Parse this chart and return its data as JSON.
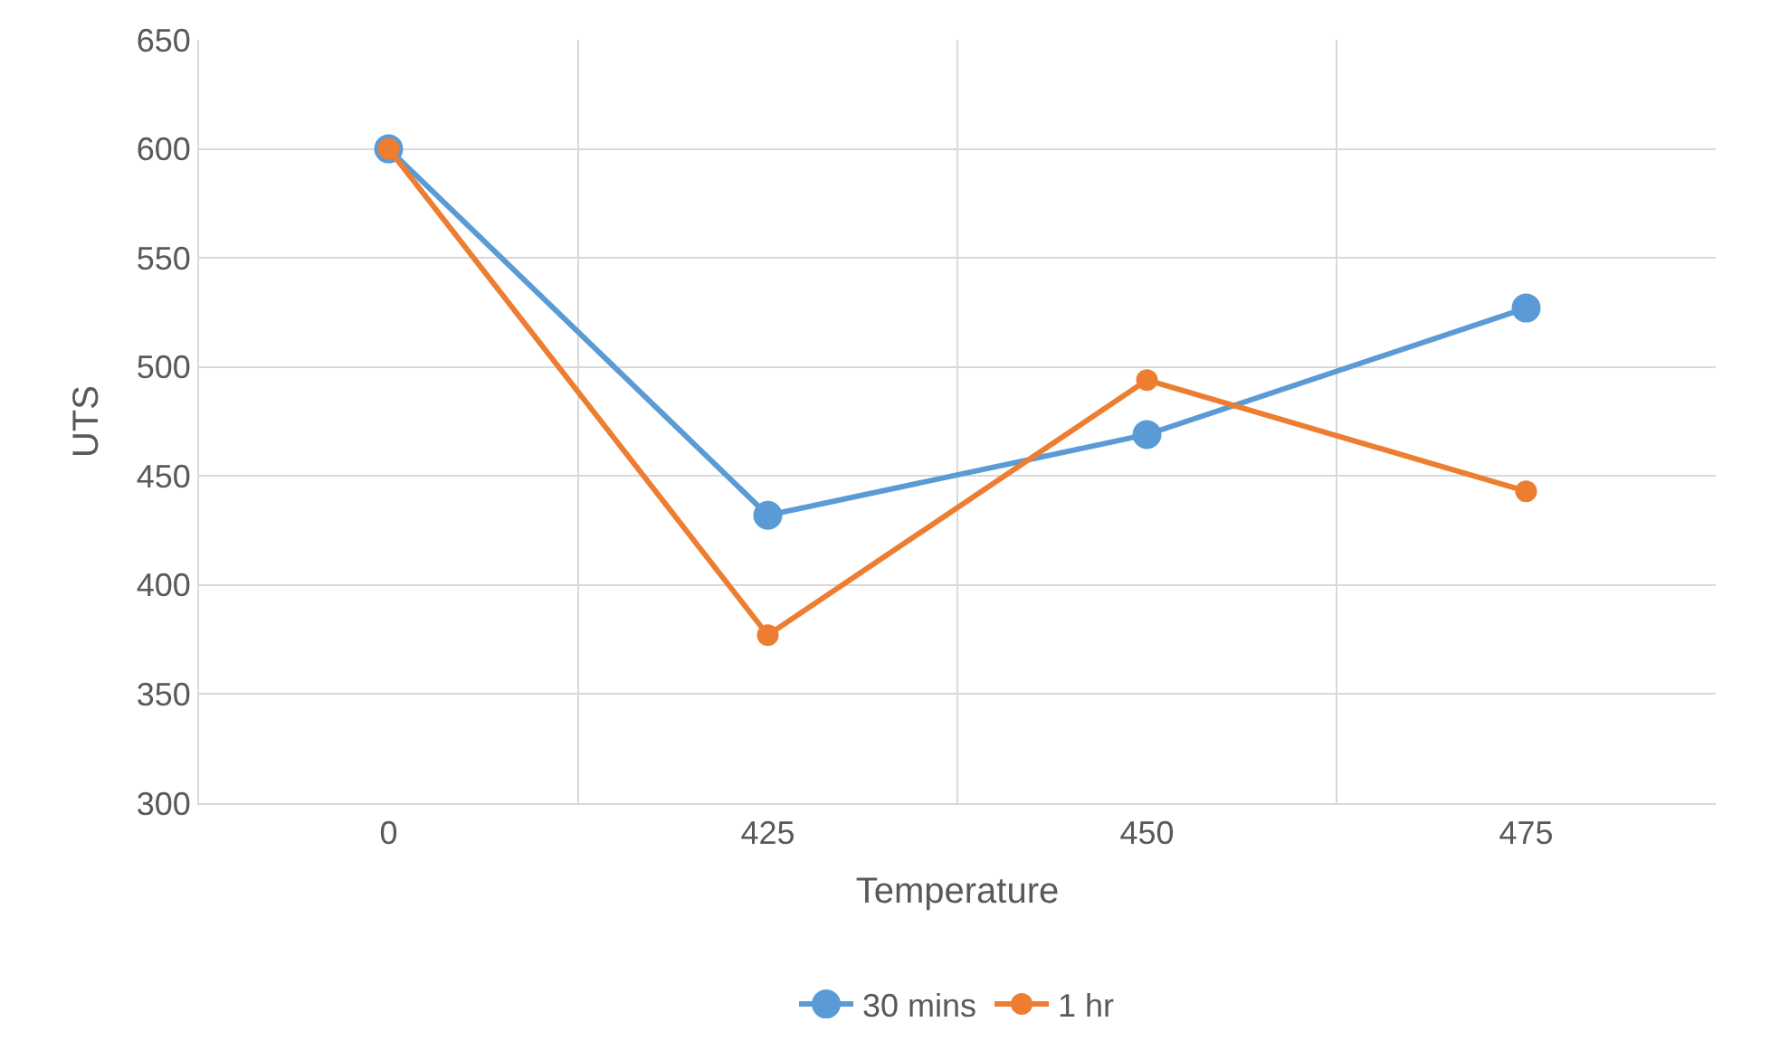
{
  "chart_data": {
    "type": "line",
    "xlabel": "Temperature",
    "ylabel": "UTS",
    "categories": [
      "0",
      "425",
      "450",
      "475"
    ],
    "series": [
      {
        "name": "30 mins",
        "color": "#5b9bd5",
        "values": [
          600,
          432,
          469,
          527
        ]
      },
      {
        "name": "1 hr",
        "color": "#ed7d31",
        "values": [
          600,
          377,
          494,
          443
        ]
      }
    ],
    "ylim": [
      300,
      650
    ],
    "yticks": [
      300,
      350,
      400,
      450,
      500,
      550,
      600,
      650
    ],
    "grid": true,
    "legend": "bottom",
    "marker": "circle",
    "line_style": "solid"
  }
}
